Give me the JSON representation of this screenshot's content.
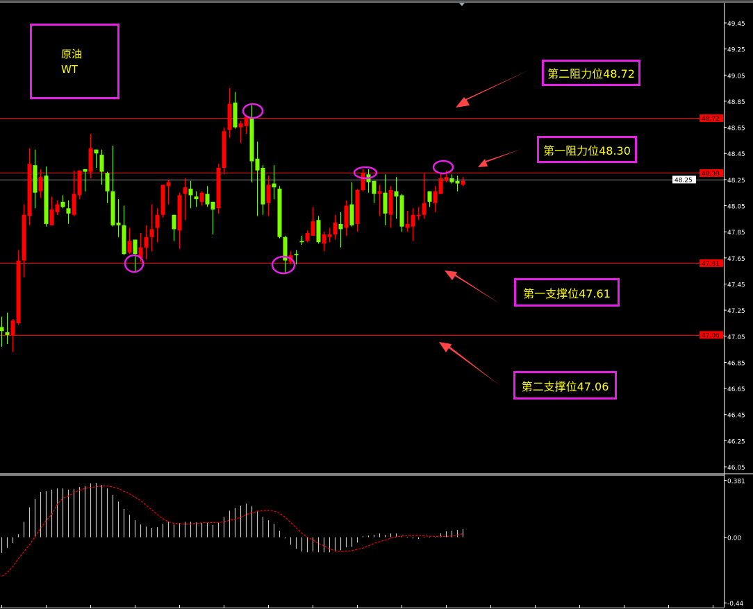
{
  "title_box": {
    "line1": "原油",
    "line2": "WT"
  },
  "annotations": [
    {
      "label": "第二阻力位48.72",
      "level": 48.72
    },
    {
      "label": "第一阻力位48.30",
      "level": 48.3
    },
    {
      "label": "第一支撑位47.61",
      "level": 47.61
    },
    {
      "label": "第二支撑位47.06",
      "level": 47.06
    }
  ],
  "colors": {
    "up": "#ff0000",
    "down": "#7cfc00",
    "annotation_border": "#e61ee6",
    "annotation_text": "#ffff00",
    "arrow": "#ff4545",
    "level_line": "#ff0000",
    "macd_hist": "#c8c8c8",
    "macd_signal": "#ff0000"
  },
  "chart_data": [
    {
      "type": "candlestick",
      "ylim": [
        46.05,
        49.45
      ],
      "y_ticks": [
        "49.45",
        "49.25",
        "49.05",
        "48.85",
        "48.65",
        "48.45",
        "48.25",
        "48.05",
        "47.85",
        "47.65",
        "47.45",
        "47.25",
        "47.05",
        "46.85",
        "46.65",
        "46.45",
        "46.25",
        "46.05"
      ],
      "current_price": "48.25",
      "level_labels": [
        "48.72",
        "48.30",
        "47.61",
        "47.06"
      ],
      "ohlc": [
        [
          47.12,
          47.2,
          46.97,
          47.09
        ],
        [
          47.08,
          47.23,
          46.99,
          47.06
        ],
        [
          47.06,
          47.18,
          46.93,
          47.17
        ],
        [
          47.15,
          47.71,
          47.14,
          47.63
        ],
        [
          47.63,
          48.06,
          47.5,
          47.98
        ],
        [
          47.97,
          48.49,
          47.9,
          48.37
        ],
        [
          48.36,
          48.48,
          48.03,
          48.15
        ],
        [
          48.16,
          48.33,
          48.11,
          48.27
        ],
        [
          48.28,
          48.35,
          47.89,
          47.91
        ],
        [
          47.9,
          48.12,
          47.9,
          48.02
        ],
        [
          48.0,
          48.09,
          47.98,
          48.06
        ],
        [
          48.08,
          48.13,
          48.03,
          48.04
        ],
        [
          48.03,
          48.09,
          47.91,
          47.99
        ],
        [
          47.98,
          48.32,
          47.97,
          48.14
        ],
        [
          48.13,
          48.32,
          48.1,
          48.32
        ],
        [
          48.33,
          48.33,
          48.16,
          48.31
        ],
        [
          48.31,
          48.6,
          48.26,
          48.49
        ],
        [
          48.48,
          48.48,
          48.34,
          48.45
        ],
        [
          48.44,
          48.48,
          48.21,
          48.31
        ],
        [
          48.3,
          48.31,
          48.07,
          48.16
        ],
        [
          48.16,
          48.51,
          47.89,
          47.9
        ],
        [
          47.92,
          48.1,
          47.81,
          47.9
        ],
        [
          47.9,
          48.05,
          47.67,
          47.68
        ],
        [
          47.69,
          47.88,
          47.68,
          47.78
        ],
        [
          47.79,
          47.79,
          47.55,
          47.68
        ],
        [
          47.65,
          47.84,
          47.62,
          47.73
        ],
        [
          47.73,
          47.9,
          47.64,
          47.81
        ],
        [
          47.81,
          48.06,
          47.7,
          47.87
        ],
        [
          47.88,
          48.03,
          47.77,
          47.98
        ],
        [
          47.98,
          48.21,
          47.96,
          48.21
        ],
        [
          48.2,
          48.25,
          48.06,
          48.23
        ],
        [
          47.98,
          47.98,
          47.78,
          47.87
        ],
        [
          47.86,
          48.15,
          47.72,
          48.13
        ],
        [
          48.14,
          48.26,
          47.94,
          48.19
        ],
        [
          48.18,
          48.24,
          48.03,
          48.13
        ],
        [
          48.12,
          48.16,
          48.04,
          48.1
        ],
        [
          48.08,
          48.16,
          48.05,
          48.15
        ],
        [
          48.14,
          48.2,
          48.04,
          48.06
        ],
        [
          48.08,
          48.08,
          47.83,
          48.02
        ],
        [
          48.03,
          48.37,
          47.99,
          48.34
        ],
        [
          48.34,
          48.65,
          48.29,
          48.62
        ],
        [
          48.63,
          48.95,
          48.57,
          48.83
        ],
        [
          48.84,
          48.92,
          48.64,
          48.65
        ],
        [
          48.65,
          48.7,
          48.53,
          48.68
        ],
        [
          48.66,
          48.74,
          48.6,
          48.73
        ],
        [
          48.72,
          48.82,
          48.23,
          48.39
        ],
        [
          48.41,
          48.54,
          47.97,
          48.32
        ],
        [
          48.34,
          48.36,
          47.98,
          48.06
        ],
        [
          48.07,
          48.28,
          47.97,
          48.21
        ],
        [
          48.22,
          48.36,
          48.1,
          48.19
        ],
        [
          48.18,
          48.2,
          47.8,
          47.81
        ],
        [
          47.81,
          47.82,
          47.53,
          47.63
        ],
        [
          47.62,
          47.7,
          47.6,
          47.67
        ],
        [
          47.68,
          47.71,
          47.6,
          47.67
        ],
        [
          47.78,
          47.82,
          47.75,
          47.77
        ],
        [
          47.78,
          47.86,
          47.77,
          47.84
        ],
        [
          47.82,
          48.04,
          47.82,
          47.93
        ],
        [
          47.94,
          47.97,
          47.76,
          47.77
        ],
        [
          47.76,
          47.85,
          47.7,
          47.83
        ],
        [
          47.81,
          47.88,
          47.77,
          47.83
        ],
        [
          47.83,
          47.98,
          47.79,
          47.92
        ],
        [
          47.91,
          48.0,
          47.73,
          47.87
        ],
        [
          47.88,
          48.09,
          47.82,
          48.05
        ],
        [
          48.06,
          48.23,
          47.89,
          47.9
        ],
        [
          47.91,
          48.18,
          47.85,
          48.17
        ],
        [
          48.17,
          48.33,
          48.16,
          48.3
        ],
        [
          48.29,
          48.33,
          48.15,
          48.23
        ],
        [
          48.24,
          48.24,
          48.07,
          48.14
        ],
        [
          48.14,
          48.21,
          47.97,
          48.16
        ],
        [
          48.15,
          48.29,
          47.9,
          47.99
        ],
        [
          47.98,
          48.2,
          47.88,
          48.17
        ],
        [
          48.16,
          48.27,
          47.95,
          48.12
        ],
        [
          48.13,
          48.14,
          47.85,
          47.89
        ],
        [
          47.88,
          48.01,
          47.85,
          47.91
        ],
        [
          47.89,
          48.03,
          47.78,
          47.98
        ],
        [
          47.97,
          48.04,
          47.94,
          47.98
        ],
        [
          47.98,
          48.3,
          47.95,
          48.07
        ],
        [
          48.16,
          48.16,
          48.04,
          48.08
        ],
        [
          48.07,
          48.2,
          48.0,
          48.16
        ],
        [
          48.14,
          48.3,
          48.14,
          48.26
        ],
        [
          48.24,
          48.32,
          48.23,
          48.27
        ],
        [
          48.26,
          48.29,
          48.22,
          48.23
        ],
        [
          48.24,
          48.28,
          48.16,
          48.22
        ],
        [
          48.21,
          48.27,
          48.2,
          48.24
        ]
      ]
    },
    {
      "type": "macd",
      "ylim": [
        -0.44,
        0.381
      ],
      "y_ticks": [
        "0.381",
        "0.00",
        "-0.44"
      ],
      "histogram": [
        -0.104,
        -0.071,
        -0.039,
        0.02,
        0.104,
        0.2,
        0.257,
        0.304,
        0.308,
        0.318,
        0.327,
        0.327,
        0.318,
        0.322,
        0.336,
        0.341,
        0.36,
        0.364,
        0.35,
        0.327,
        0.281,
        0.239,
        0.188,
        0.15,
        0.113,
        0.085,
        0.071,
        0.062,
        0.067,
        0.09,
        0.104,
        0.085,
        0.095,
        0.104,
        0.104,
        0.099,
        0.095,
        0.095,
        0.081,
        0.099,
        0.136,
        0.178,
        0.197,
        0.211,
        0.225,
        0.206,
        0.178,
        0.136,
        0.113,
        0.09,
        0.043,
        -0.008,
        -0.05,
        -0.078,
        -0.096,
        -0.101,
        -0.096,
        -0.101,
        -0.101,
        -0.101,
        -0.096,
        -0.087,
        -0.068,
        -0.064,
        -0.036,
        0.006,
        0.011,
        0.016,
        0.025,
        0.016,
        0.025,
        0.025,
        0.006,
        -0.003,
        -0.008,
        -0.012,
        -0.003,
        0.002,
        -0.003,
        0.025,
        0.039,
        0.043,
        0.048,
        0.053
      ],
      "signal": [
        -0.262,
        -0.236,
        -0.197,
        -0.143,
        -0.096,
        -0.05,
        0.005,
        0.059,
        0.113,
        0.152,
        0.222,
        0.26,
        0.276,
        0.299,
        0.315,
        0.327,
        0.333,
        0.338,
        0.343,
        0.343,
        0.336,
        0.326,
        0.307,
        0.291,
        0.268,
        0.245,
        0.214,
        0.183,
        0.152,
        0.124,
        0.102,
        0.093,
        0.09,
        0.088,
        0.088,
        0.093,
        0.096,
        0.098,
        0.098,
        0.098,
        0.104,
        0.113,
        0.121,
        0.133,
        0.152,
        0.164,
        0.174,
        0.178,
        0.18,
        0.175,
        0.16,
        0.133,
        0.098,
        0.062,
        0.028,
        0.0,
        -0.019,
        -0.042,
        -0.057,
        -0.078,
        -0.091,
        -0.096,
        -0.093,
        -0.091,
        -0.081,
        -0.073,
        -0.057,
        -0.042,
        -0.031,
        -0.019,
        -0.006,
        0.002,
        0.008,
        0.012,
        0.012,
        0.012,
        0.009,
        0.006,
        0.005,
        0.005,
        0.005,
        0.008,
        0.016,
        0.023
      ]
    }
  ]
}
